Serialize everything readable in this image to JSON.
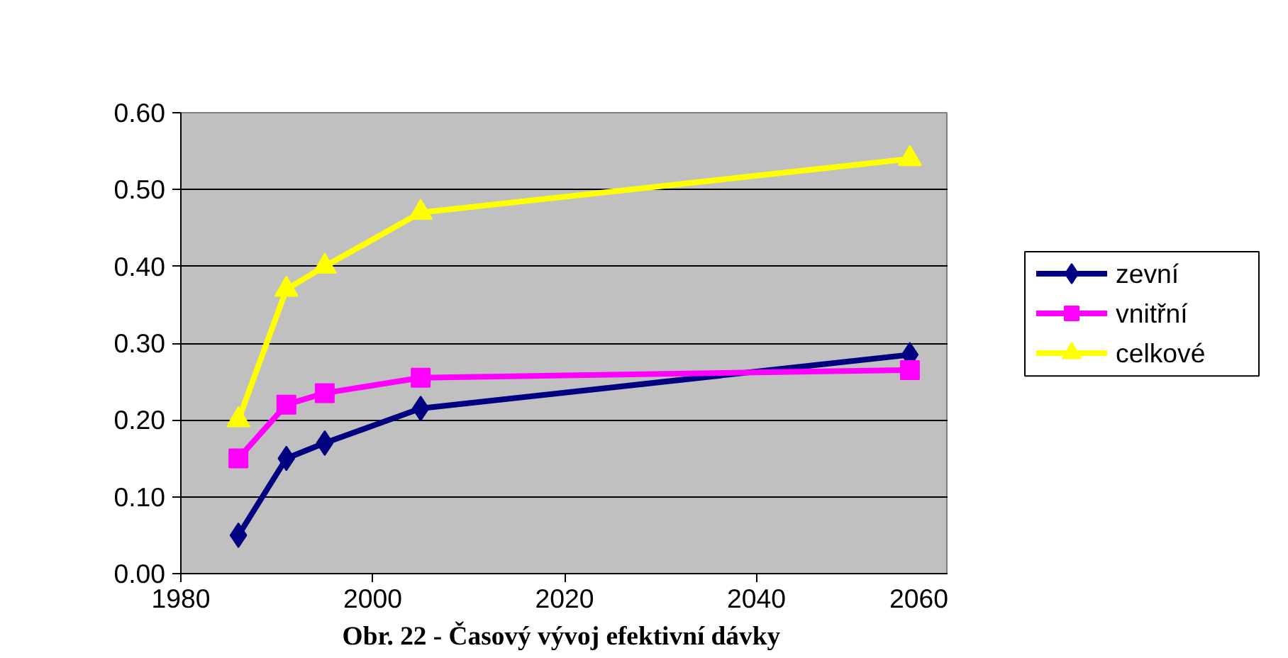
{
  "chart_data": {
    "type": "line",
    "annotations": [
      "Obr. 22 -  Časový vývoj efektivní dávky"
    ],
    "x": [
      1986,
      1991,
      1995,
      2005,
      2056
    ],
    "xlim": [
      1980,
      2060
    ],
    "xticks": [
      1980,
      2000,
      2020,
      2040,
      2060
    ],
    "ylim": [
      0,
      0.6
    ],
    "yticks": [
      {
        "value": 0,
        "label": "0.00"
      },
      {
        "value": 0.1,
        "label": "0.10"
      },
      {
        "value": 0.2,
        "label": "0.20"
      },
      {
        "value": 0.3,
        "label": "0.30"
      },
      {
        "value": 0.4,
        "label": "0.40"
      },
      {
        "value": 0.5,
        "label": "0.50"
      },
      {
        "value": 0.6,
        "label": "0.60"
      }
    ],
    "grid": "y",
    "legend": "right",
    "series": [
      {
        "name": "zevní",
        "color": "#000080",
        "marker": "diamond",
        "values": [
          0.05,
          0.15,
          0.17,
          0.215,
          0.285
        ]
      },
      {
        "name": "vnitřní",
        "color": "#ff00ff",
        "marker": "square",
        "values": [
          0.15,
          0.22,
          0.235,
          0.255,
          0.265
        ]
      },
      {
        "name": "celkové",
        "color": "#ffff00",
        "marker": "triangle",
        "values": [
          0.2,
          0.37,
          0.4,
          0.47,
          0.54
        ]
      }
    ]
  }
}
